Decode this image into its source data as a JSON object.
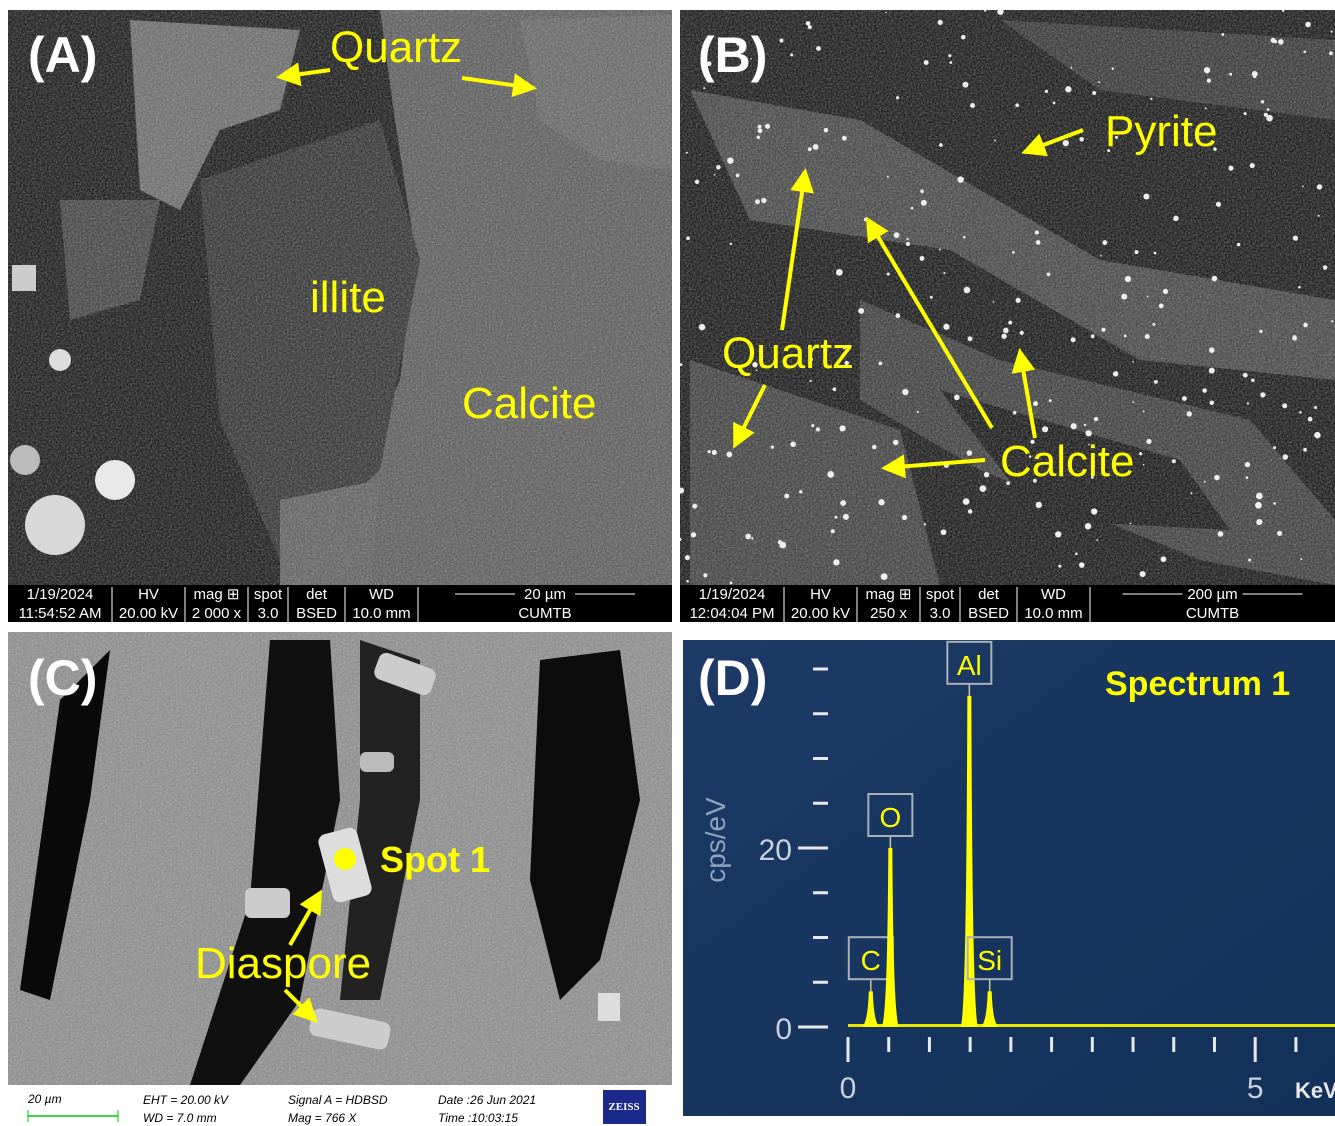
{
  "panels": [
    {
      "label": "(A)",
      "annotations": [
        "Quartz",
        "illite",
        "Calcite"
      ],
      "info_bar": {
        "date": "1/19/2024",
        "time": "11:54:52 AM",
        "cols": [
          [
            "HV",
            "20.00 kV"
          ],
          [
            "mag ⊞",
            "2 000 x"
          ],
          [
            "spot",
            "3.0"
          ],
          [
            "det",
            "BSED"
          ],
          [
            "WD",
            "10.0 mm"
          ]
        ],
        "scale": "20 µm",
        "lab": "CUMTB"
      }
    },
    {
      "label": "(B)",
      "annotations": [
        "Pyrite",
        "Quartz",
        "Calcite"
      ],
      "info_bar": {
        "date": "1/19/2024",
        "time": "12:04:04 PM",
        "cols": [
          [
            "HV",
            "20.00 kV"
          ],
          [
            "mag ⊞",
            "250 x"
          ],
          [
            "spot",
            "3.0"
          ],
          [
            "det",
            "BSED"
          ],
          [
            "WD",
            "10.0 mm"
          ]
        ],
        "scale": "200 µm",
        "lab": "CUMTB"
      }
    },
    {
      "label": "(C)",
      "annotations": [
        "Spot 1",
        "Diaspore"
      ],
      "footer": {
        "scale": "20 µm",
        "eht": "EHT = 20.00 kV",
        "wd": "WD =  7.0 mm",
        "signal": "Signal A = HDBSD",
        "mag": "Mag =    766 X",
        "date": "Date :26 Jun 2021",
        "time": "Time :10:03:15",
        "brand": "ZEISS"
      }
    },
    {
      "label": "(D)",
      "spectrum": {
        "title": "Spectrum 1",
        "y_label": "cps/eV",
        "x_unit": "KeV",
        "xlim": [
          0,
          5.98
        ],
        "ylim": [
          0,
          40
        ],
        "xticks": [
          0,
          5
        ],
        "xminor": [
          0.5,
          1,
          1.5,
          2,
          2.5,
          3,
          3.5,
          4,
          4.5,
          5.5
        ],
        "yticks": [
          0,
          20
        ],
        "yminor": [
          5,
          10,
          15,
          25,
          30,
          35,
          40
        ],
        "peaks": [
          {
            "label": "C",
            "energy": 0.28,
            "counts": 4
          },
          {
            "label": "O",
            "energy": 0.52,
            "counts": 20
          },
          {
            "label": "Al",
            "energy": 1.49,
            "counts": 37
          },
          {
            "label": "Si",
            "energy": 1.74,
            "counts": 4
          }
        ]
      }
    }
  ]
}
